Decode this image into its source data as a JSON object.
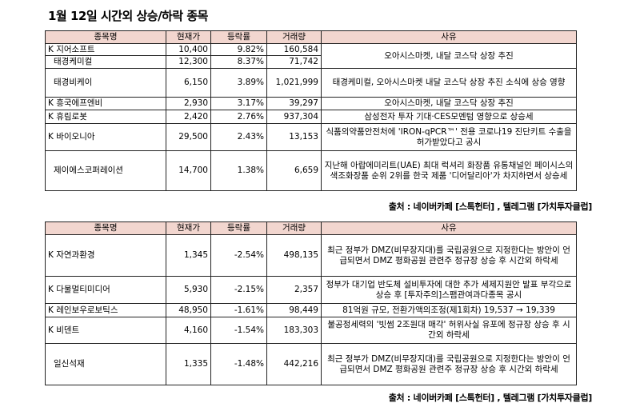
{
  "title": "1월 12일  시간외 상승/하락 종목",
  "headers": {
    "name": "종목명",
    "price": "현재가",
    "change": "등락률",
    "volume": "거래량",
    "reason": "사유"
  },
  "rising": [
    {
      "name": "K 지어소프트",
      "price": "10,400",
      "change": "9.82%",
      "volume": "160,584"
    },
    {
      "name": "태경케미컬",
      "price": "12,300",
      "change": "8.37%",
      "volume": "71,742"
    },
    {
      "name": "태경비케이",
      "price": "6,150",
      "change": "3.89%",
      "volume": "1,021,999"
    },
    {
      "name": "K 흥국에프엔비",
      "price": "2,930",
      "change": "3.17%",
      "volume": "39,297"
    },
    {
      "name": "K 휴림로봇",
      "price": "2,420",
      "change": "2.76%",
      "volume": "937,304"
    },
    {
      "name": "K 바이오니아",
      "price": "29,500",
      "change": "2.43%",
      "volume": "13,153"
    },
    {
      "name": "제이에스코퍼레이션",
      "price": "14,700",
      "change": "1.38%",
      "volume": "6,659"
    }
  ],
  "rising_reasons": [
    "오아시스마켓, 내달 코스닥 상장 추진",
    "태경케미컬, 오아시스마켓 내달 코스닥 상장 추진 소식에 상승 영향",
    "오아시스마켓, 내달 코스닥 상장 추진",
    "삼성전자 투자 기대·CES모멘텀 영향으로 상승세",
    "식품의약품안전처에 'IRON-qPCR™' 전용 코로나19 진단키트 수출을 허가받았다고 공시",
    "지난해 아랍에미리트(UAE) 최대 럭셔리 화장품 유통채널인 페이시스의 색조화장품 순위 2위를 한국 제품 '디어달리아'가 차지하면서 상승세"
  ],
  "falling": [
    {
      "name": "K 자연과환경",
      "price": "1,345",
      "change": "-2.54%",
      "volume": "498,135"
    },
    {
      "name": "K 다물멀티미디어",
      "price": "5,930",
      "change": "-2.15%",
      "volume": "2,357"
    },
    {
      "name": "K 레인보우로보틱스",
      "price": "48,950",
      "change": "-1.61%",
      "volume": "98,449"
    },
    {
      "name": "K 비덴트",
      "price": "4,160",
      "change": "-1.54%",
      "volume": "183,303"
    },
    {
      "name": "일신석재",
      "price": "1,335",
      "change": "-1.48%",
      "volume": "442,216"
    }
  ],
  "falling_reasons": [
    "최근 정부가 DMZ(비무장지대)를 국립공원으로 지정한다는 방안이 언급되면서 DMZ 평화공원 관련주 정규장 상승 후 시간외 하락세",
    "정부가 대기업 반도체 설비투자에 대한 추가 세제지원안 발표 부각으로 상승 후 [투자주의]스팸관여과다종목 공시",
    "81억원 규모, 전환가액의조정(제1회차) 19,537 → 19,339",
    "불공정세력의 '빗썸 2조원대 매각' 허위사실 유포에 정규장 상승 후 시간외 하락세",
    "최근 정부가 DMZ(비무장지대)를 국립공원으로 지정한다는 방안이 언급되면서 DMZ 평화공원 관련주 정규장 상승 후 시간외 하락세"
  ],
  "source": "출처 : 네이버카페 [스톡헌터] , 텔레그램 [가치투자클럽]"
}
